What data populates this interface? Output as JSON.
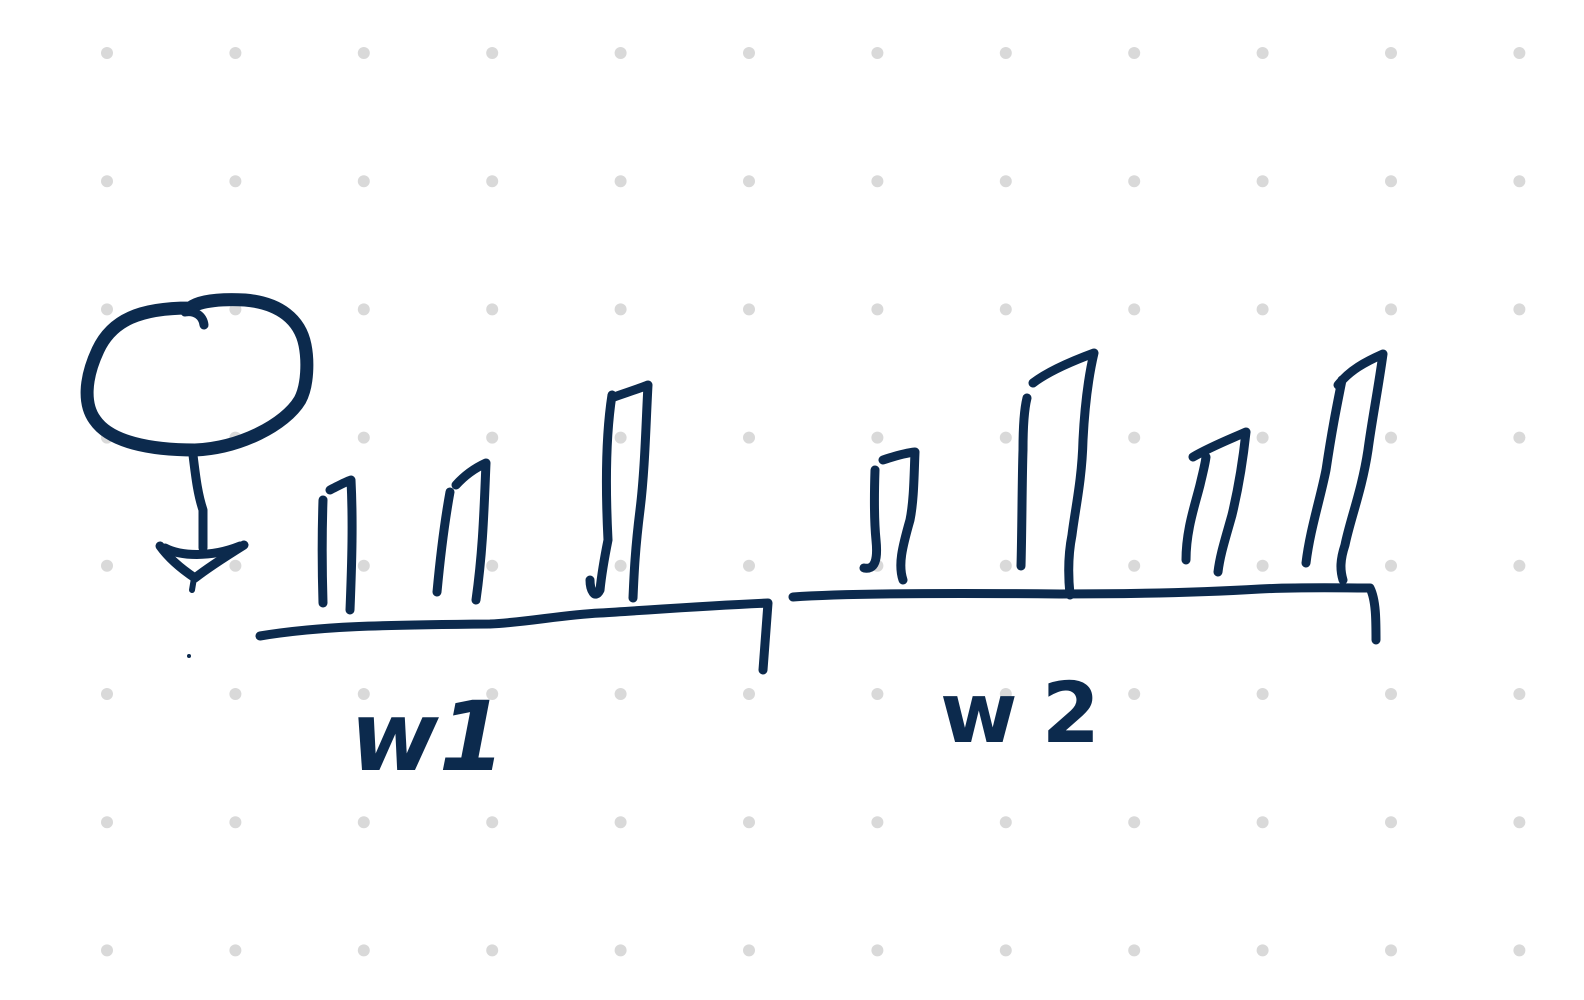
{
  "colors": {
    "ink": "#0c2a4d",
    "dot_grid": "#d9d9d9",
    "background": "#ffffff"
  },
  "symbols": {
    "female_symbol": "female-symbol-icon"
  },
  "groups": [
    {
      "label": "w1",
      "bar_count": 3
    },
    {
      "label": "w2",
      "bar_count": 4
    }
  ]
}
